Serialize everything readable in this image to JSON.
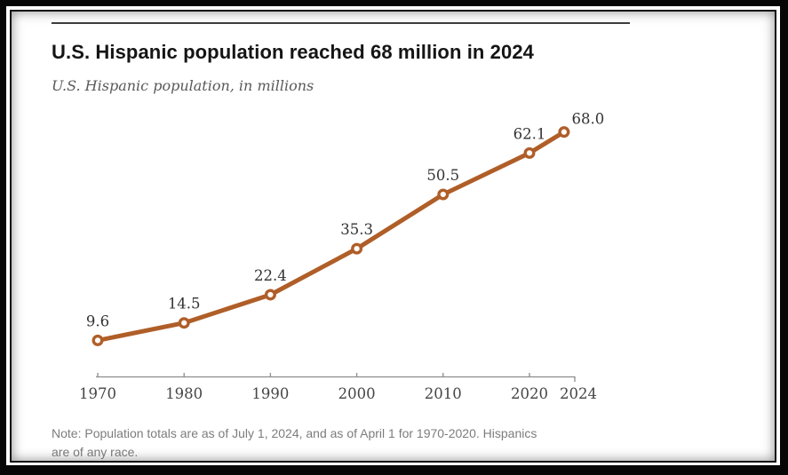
{
  "chart_data": {
    "type": "line",
    "title": "U.S. Hispanic population reached 68 million in 2024",
    "subtitle": "U.S. Hispanic population, in millions",
    "x": [
      1970,
      1980,
      1990,
      2000,
      2010,
      2020,
      2024
    ],
    "x_tick_labels": [
      "1970",
      "1980",
      "1990",
      "2000",
      "2010",
      "2020",
      "2024"
    ],
    "series": [
      {
        "name": "U.S. Hispanic population (millions)",
        "values": [
          9.6,
          14.5,
          22.4,
          35.3,
          50.5,
          62.1,
          68.0
        ],
        "point_labels": [
          "9.6",
          "14.5",
          "22.4",
          "35.3",
          "50.5",
          "62.1",
          "68.0"
        ],
        "color": "#b05e28"
      }
    ],
    "xlabel": "",
    "ylabel": "",
    "ylim": [
      0,
      75
    ],
    "grid": false,
    "legend": "none",
    "y_axis_visible": false,
    "marker": "open-circle",
    "colors": {
      "line": "#b05e28",
      "marker_fill": "#ffffff",
      "axis": "#8c8c8c",
      "data_label": "#333333",
      "tick_label": "#454545"
    }
  },
  "note": {
    "line1": "Note: Population totals are as of July 1, 2024, and as of April 1 for 1970-2020. Hispanics",
    "line2": "are of any race."
  }
}
